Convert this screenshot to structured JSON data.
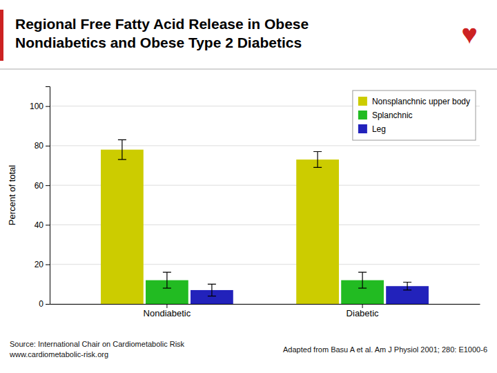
{
  "chart_data": {
    "type": "bar",
    "title": "Regional Free Fatty Acid Release in Obese\nNondiabetics and Obese Type 2 Diabetics",
    "categories": [
      "Nondiabetic",
      "Diabetic"
    ],
    "series": [
      {
        "name": "Nonsplanchnic upper body",
        "color": "#CCCC00",
        "values": [
          78,
          73
        ],
        "errors": [
          5,
          4
        ]
      },
      {
        "name": "Splanchnic",
        "color": "#22BB22",
        "values": [
          12,
          12
        ],
        "errors": [
          4,
          4
        ]
      },
      {
        "name": "Leg",
        "color": "#2222BB",
        "values": [
          7,
          9
        ],
        "errors": [
          3,
          2
        ]
      }
    ],
    "ylabel": "Percent of total",
    "ylim": [
      0,
      110
    ],
    "yticks": [
      0,
      20,
      40,
      60,
      80,
      100
    ],
    "grid": true,
    "legend": "top-right",
    "annotations": [
      "♥",
      "Source: International Chair on Cardiometabolic Risk\nwww.cardiometabolic-risk.org",
      "Adapted from Basu A et al. Am J Physiol 2001; 280: E1000-6"
    ]
  }
}
